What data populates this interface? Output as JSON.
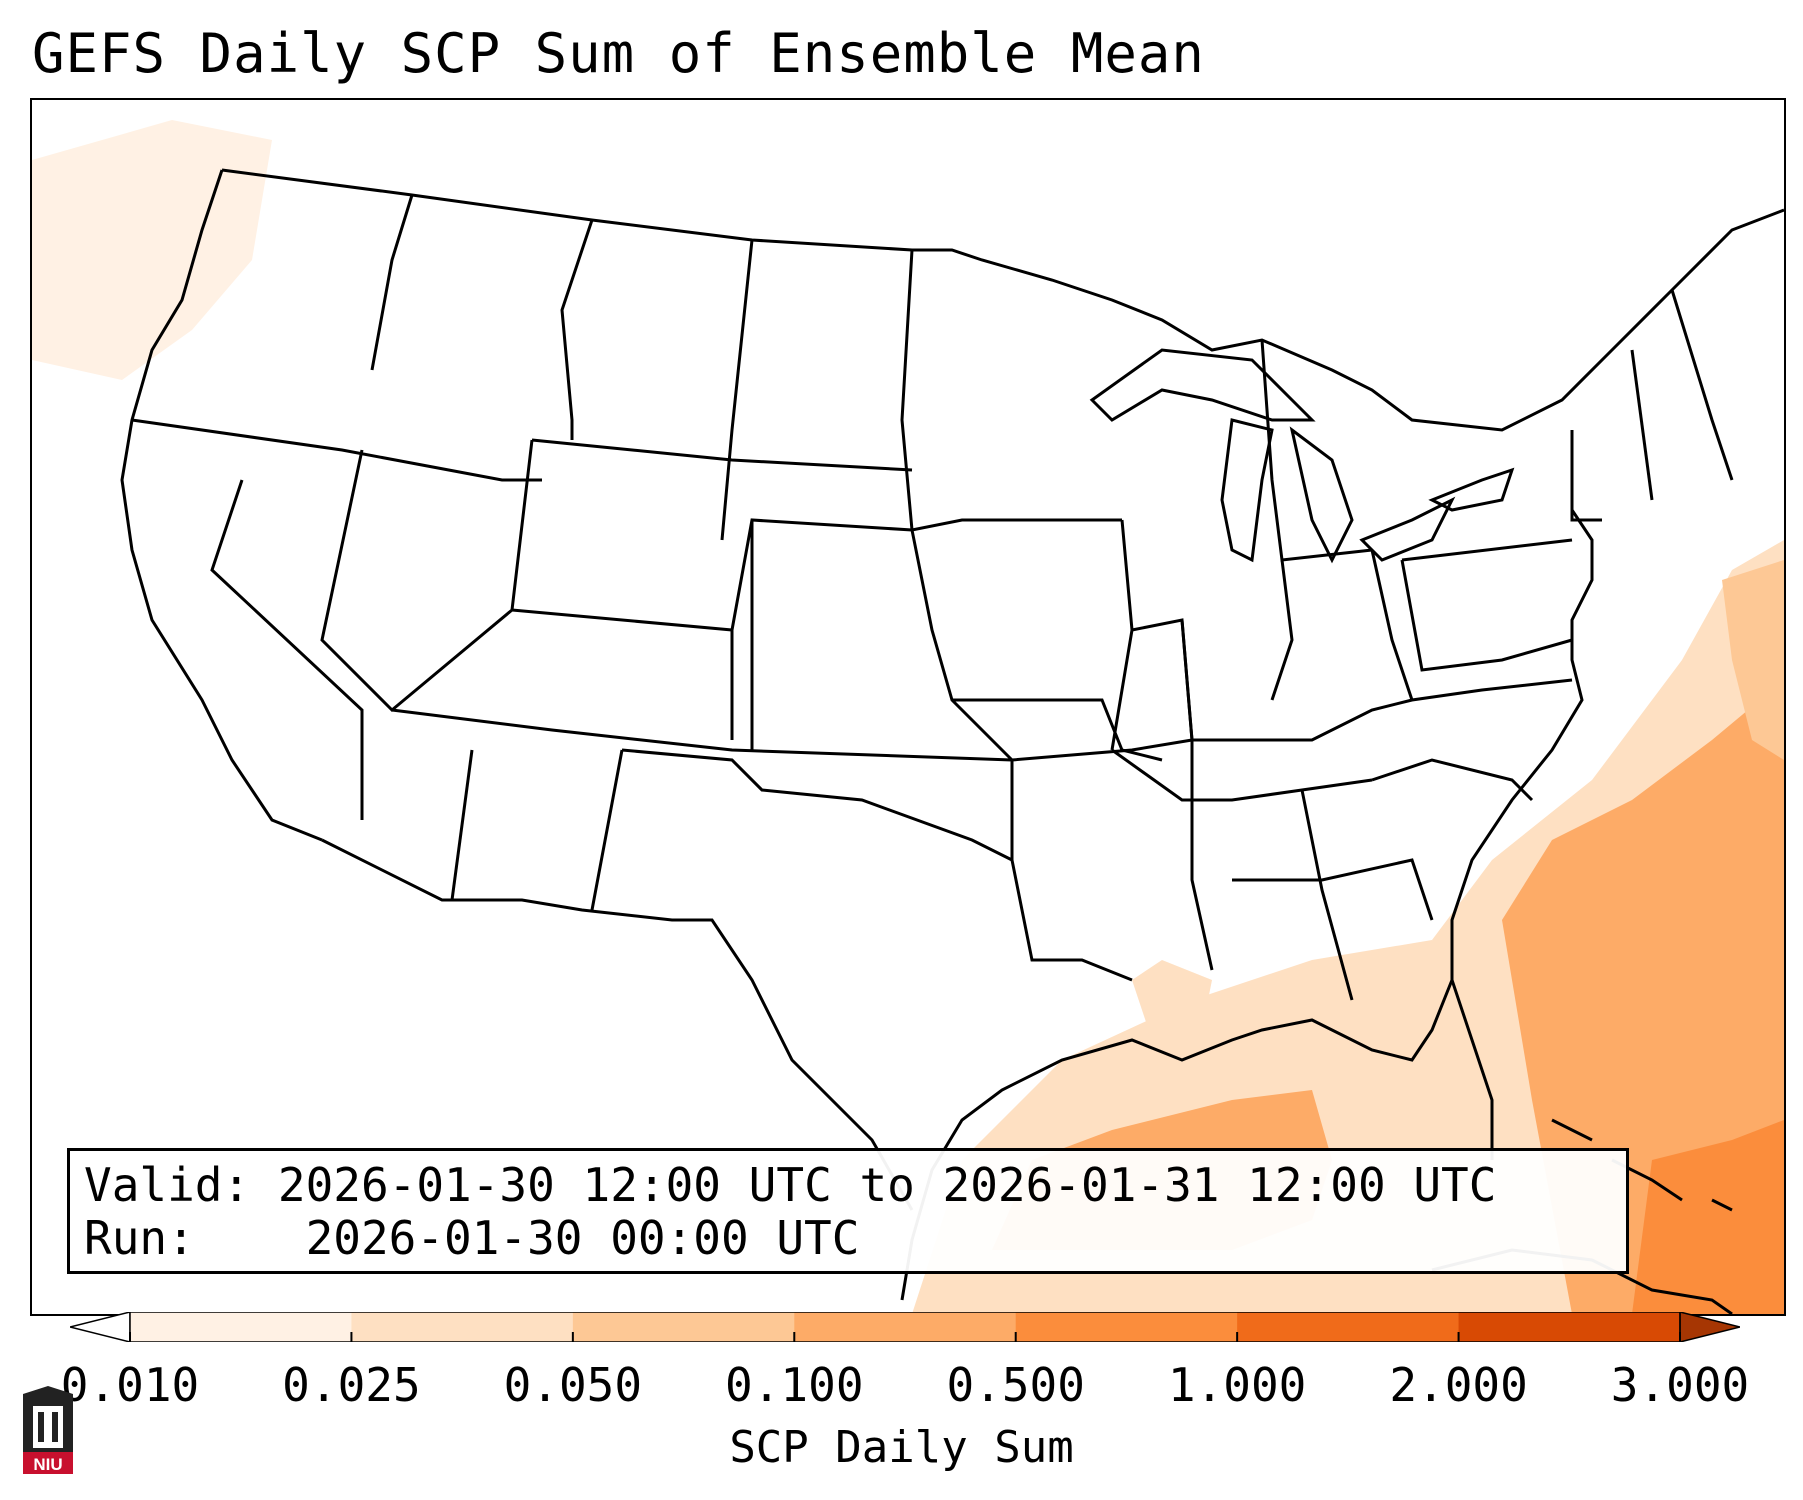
{
  "title": "GEFS Daily SCP Sum of Ensemble Mean",
  "info": {
    "valid_label": "Valid:",
    "valid_value": "2026-01-30 12:00 UTC to 2026-01-31 12:00 UTC",
    "run_label": "Run:",
    "run_value": "2026-01-30 00:00 UTC"
  },
  "colorbar": {
    "label": "SCP Daily Sum",
    "ticks": [
      "0.010",
      "0.025",
      "0.050",
      "0.100",
      "0.500",
      "1.000",
      "2.000",
      "3.000"
    ],
    "colors": [
      "#fff1e4",
      "#fee0c2",
      "#fdc895",
      "#fdab67",
      "#fb8d3c",
      "#f06b1a",
      "#d84a04",
      "#a63603"
    ]
  },
  "logo": {
    "text": "NIU"
  }
}
